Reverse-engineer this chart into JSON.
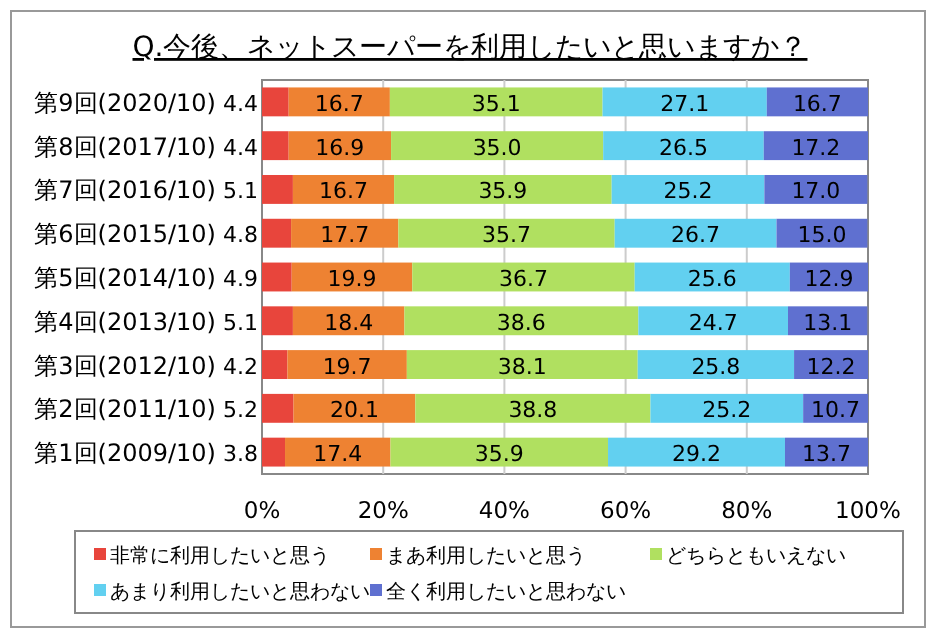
{
  "chart_data": {
    "type": "bar",
    "orientation": "horizontal",
    "stacked": true,
    "title": "Q.今後、ネットスーパーを利用したいと思いますか？",
    "categories": [
      "第9回(2020/10)",
      "第8回(2017/10)",
      "第7回(2016/10)",
      "第6回(2015/10)",
      "第5回(2014/10)",
      "第4回(2013/10)",
      "第3回(2012/10)",
      "第2回(2011/10)",
      "第1回(2009/10)"
    ],
    "series": [
      {
        "name": "非常に利用したいと思う",
        "color": "#e8453c",
        "values": [
          4.4,
          4.4,
          5.1,
          4.8,
          4.9,
          5.1,
          4.2,
          5.2,
          3.8
        ],
        "value_labels": [
          "4.4",
          "4.4",
          "5.1",
          "4.8",
          "4.9",
          "5.1",
          "4.2",
          "5.2",
          "3.8"
        ]
      },
      {
        "name": "まあ利用したいと思う",
        "color": "#ee8232",
        "values": [
          16.7,
          16.9,
          16.7,
          17.7,
          19.9,
          18.4,
          19.7,
          20.1,
          17.4
        ],
        "value_labels": [
          "16.7",
          "16.9",
          "16.7",
          "17.7",
          "19.9",
          "18.4",
          "19.7",
          "20.1",
          "17.4"
        ]
      },
      {
        "name": "どちらともいえない",
        "color": "#b0e060",
        "values": [
          35.1,
          35.0,
          35.9,
          35.7,
          36.7,
          38.6,
          38.1,
          38.8,
          35.9
        ],
        "value_labels": [
          "35.1",
          "35.0",
          "35.9",
          "35.7",
          "36.7",
          "38.6",
          "38.1",
          "38.8",
          "35.9"
        ]
      },
      {
        "name": "あまり利用したいと思わない",
        "color": "#62d0f0",
        "values": [
          27.1,
          26.5,
          25.2,
          26.7,
          25.6,
          24.7,
          25.8,
          25.2,
          29.2
        ],
        "value_labels": [
          "27.1",
          "26.5",
          "25.2",
          "26.7",
          "25.6",
          "24.7",
          "25.8",
          "25.2",
          "29.2"
        ]
      },
      {
        "name": "全く利用したいと思わない",
        "color": "#5f70d0",
        "values": [
          16.7,
          17.2,
          17.0,
          15.0,
          12.9,
          13.1,
          12.2,
          10.7,
          13.7
        ],
        "value_labels": [
          "16.7",
          "17.2",
          "17.0",
          "15.0",
          "12.9",
          "13.1",
          "12.2",
          "10.7",
          "13.7"
        ]
      }
    ],
    "xlim": [
      0,
      100
    ],
    "xticks": [
      {
        "value": 0,
        "label": "0%"
      },
      {
        "value": 20,
        "label": "20%"
      },
      {
        "value": 40,
        "label": "40%"
      },
      {
        "value": 60,
        "label": "60%"
      },
      {
        "value": 80,
        "label": "80%"
      },
      {
        "value": 100,
        "label": "100%"
      }
    ],
    "grid": "x",
    "legend": "bottom"
  }
}
